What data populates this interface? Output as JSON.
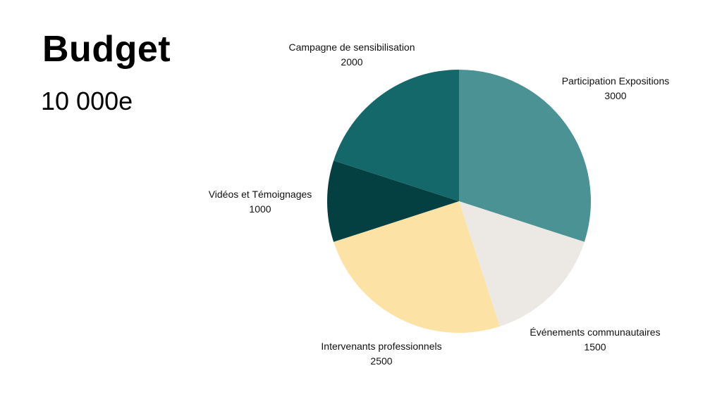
{
  "slide": {
    "title": "Budget",
    "total": "10 000e"
  },
  "chart_data": {
    "type": "pie",
    "title": "",
    "slices": [
      {
        "label": "Participation Expositions",
        "value": 3000,
        "value_label": "3000",
        "color": "#4a9294"
      },
      {
        "label": "Événements communautaires",
        "value": 1500,
        "value_label": "1500",
        "color": "#ece8e3"
      },
      {
        "label": "Intervenants professionnels",
        "value": 2500,
        "value_label": "2500",
        "color": "#fde2a6"
      },
      {
        "label": "Vidéos et Témoignages",
        "value": 1000,
        "value_label": "1000",
        "color": "#044042"
      },
      {
        "label": "Campagne de sensibilisation",
        "value": 2000,
        "value_label": "2000",
        "color": "#156869"
      }
    ],
    "start_angle": "12 o'clock",
    "direction": "clockwise",
    "legend": "none",
    "labels": "outside"
  }
}
